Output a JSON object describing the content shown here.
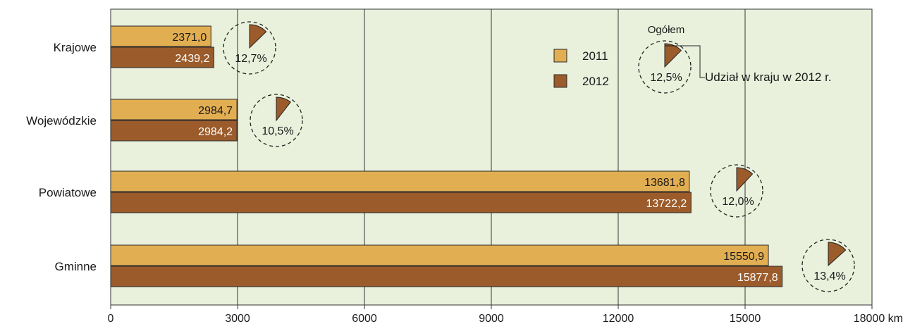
{
  "chart_data": {
    "type": "bar",
    "orientation": "horizontal",
    "categories": [
      "Krajowe",
      "Wojewódzkie",
      "Powiatowe",
      "Gminne"
    ],
    "series": [
      {
        "name": "2011",
        "values": [
          2371.0,
          2984.7,
          13681.8,
          15550.9
        ],
        "labels": [
          "2371,0",
          "2984,7",
          "13681,8",
          "15550,9"
        ],
        "color": "#E2AE52"
      },
      {
        "name": "2012",
        "values": [
          2439.2,
          2984.2,
          13722.2,
          15877.8
        ],
        "labels": [
          "2439,2",
          "2984,2",
          "13722,2",
          "15877,8"
        ],
        "color": "#9B5B2A"
      }
    ],
    "shares": {
      "values": [
        12.7,
        10.5,
        12.0,
        13.4
      ],
      "labels": [
        "12,7%",
        "10,5%",
        "12,0%",
        "13,4%"
      ]
    },
    "overall_share": {
      "value": 12.5,
      "label": "12,5%",
      "title": "Ogółem"
    },
    "share_annotation": "Udział w kraju w 2012 r.",
    "xlim": [
      0,
      18000
    ],
    "xticks": [
      0,
      3000,
      6000,
      9000,
      12000,
      15000,
      18000
    ],
    "xtick_labels": [
      "0",
      "3000",
      "6000",
      "9000",
      "12000",
      "15000",
      "18000 km"
    ],
    "grid": true,
    "legend": {
      "position": "top-right",
      "entries": [
        "2011",
        "2012"
      ]
    },
    "colors": {
      "background": "#E9F1DC",
      "bar_2011": "#E2AE52",
      "bar_2012": "#9B5B2A",
      "pie_slice": "#9B5B2A"
    }
  }
}
